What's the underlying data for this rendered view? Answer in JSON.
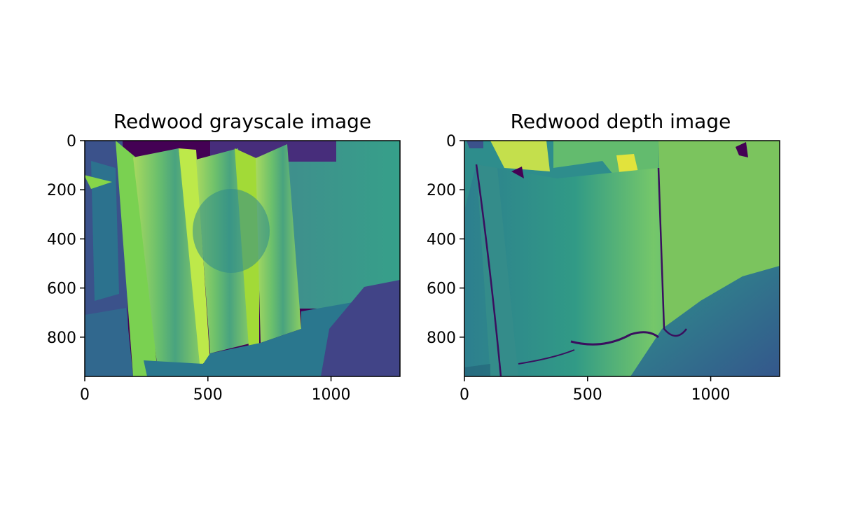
{
  "chart_data": [
    {
      "type": "heatmap",
      "title": "Redwood grayscale image",
      "colormap": "viridis",
      "xlim": [
        0,
        1280
      ],
      "ylim": [
        960,
        0
      ],
      "xticks": [
        0,
        500,
        1000
      ],
      "yticks": [
        0,
        200,
        400,
        600,
        800
      ],
      "xtick_labels": [
        "0",
        "500",
        "1000"
      ],
      "ytick_labels": [
        "0",
        "200",
        "400",
        "600",
        "800"
      ],
      "image_size": [
        1280,
        960
      ],
      "grid": false,
      "colors": {
        "dark": "#440154",
        "mid": "#3b8c8b",
        "light": "#a0d66b",
        "bright": "#cfe16a"
      }
    },
    {
      "type": "heatmap",
      "title": "Redwood depth image",
      "colormap": "viridis",
      "xlim": [
        0,
        1280
      ],
      "ylim": [
        960,
        0
      ],
      "xticks": [
        0,
        500,
        1000
      ],
      "yticks": [
        0,
        200,
        400,
        600,
        800
      ],
      "xtick_labels": [
        "0",
        "500",
        "1000"
      ],
      "ytick_labels": [
        "0",
        "200",
        "400",
        "600",
        "800"
      ],
      "image_size": [
        1280,
        960
      ],
      "grid": false,
      "colors": {
        "dark": "#440154",
        "mid": "#3e8b8a",
        "light": "#7ac36a",
        "bright": "#d9e34e"
      }
    }
  ]
}
